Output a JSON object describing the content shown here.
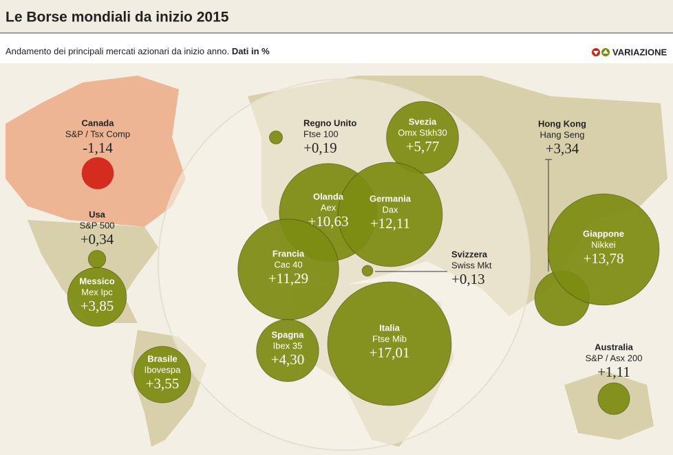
{
  "chart_data": {
    "type": "bubble",
    "title": "Le Borse mondiali da inizio 2015",
    "subtitle": "Andamento dei principali mercati azionari da inizio anno.",
    "subtitle_unit": "Dati in %",
    "legend_label": "VARIAZIONE",
    "color": "#7d8c12",
    "negative_color": "#d32118",
    "categories": [
      "Canada",
      "Usa",
      "Messico",
      "Brasile",
      "Regno Unito",
      "Svezia",
      "Olanda",
      "Germania",
      "Francia",
      "Svizzera",
      "Spagna",
      "Italia",
      "Hong Kong",
      "Giappone",
      "Australia"
    ],
    "indices": [
      "S&P / Tsx Comp",
      "S&P 500",
      "Mex Ipc",
      "Ibovespa",
      "Ftse 100",
      "Omx Stkh30",
      "Aex",
      "Dax",
      "Cac 40",
      "Swiss Mkt",
      "Ibex 35",
      "Ftse Mib",
      "Hang Seng",
      "Nikkei",
      "S&P / Asx 200"
    ],
    "values": [
      -1.14,
      0.34,
      3.85,
      3.55,
      0.19,
      5.77,
      10.63,
      12.11,
      11.29,
      0.13,
      4.3,
      17.01,
      3.34,
      13.78,
      1.11
    ],
    "value_labels": [
      "-1,14",
      "+0,34",
      "+3,85",
      "+3,55",
      "+0,19",
      "+5,77",
      "+10,63",
      "+12,11",
      "+11,29",
      "+0,13",
      "+4,30",
      "+17,01",
      "+3,34",
      "+13,78",
      "+1,11"
    ]
  }
}
